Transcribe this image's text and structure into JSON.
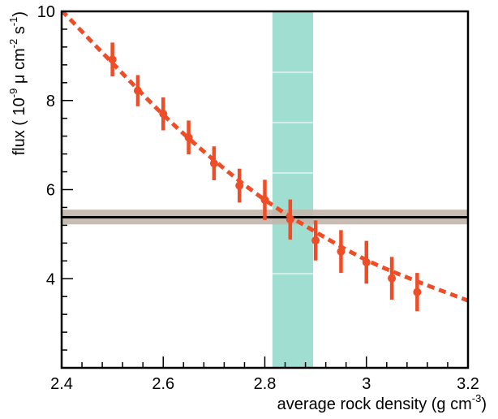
{
  "chart_data": {
    "type": "scatter",
    "xlabel_main": "average rock density (g cm",
    "xlabel_exp": "-3",
    "xlabel_close": ")",
    "ylabel_open": "flux ( 10",
    "ylabel_exp1": "-9",
    "ylabel_mu": " μ cm",
    "ylabel_exp2": "-2",
    "ylabel_s": " s",
    "ylabel_exp3": "-1",
    "ylabel_close": ")",
    "xlim": [
      2.4,
      3.2
    ],
    "ylim": [
      2.0,
      10.0
    ],
    "x_ticks": [
      {
        "value": 2.4,
        "label": "2.4"
      },
      {
        "value": 2.6,
        "label": "2.6"
      },
      {
        "value": 2.8,
        "label": "2.8"
      },
      {
        "value": 3.0,
        "label": "3"
      },
      {
        "value": 3.2,
        "label": "3.2"
      }
    ],
    "y_ticks": [
      {
        "value": 4,
        "label": "4"
      },
      {
        "value": 6,
        "label": "6"
      },
      {
        "value": 8,
        "label": "8"
      },
      {
        "value": 10,
        "label": "10"
      }
    ],
    "series": [
      {
        "points": [
          {
            "x": 2.5,
            "y": 8.92,
            "err": 0.38
          },
          {
            "x": 2.55,
            "y": 8.22,
            "err": 0.35
          },
          {
            "x": 2.6,
            "y": 7.7,
            "err": 0.37
          },
          {
            "x": 2.65,
            "y": 7.17,
            "err": 0.38
          },
          {
            "x": 2.7,
            "y": 6.59,
            "err": 0.38
          },
          {
            "x": 2.75,
            "y": 6.09,
            "err": 0.38
          },
          {
            "x": 2.8,
            "y": 5.77,
            "err": 0.45
          },
          {
            "x": 2.85,
            "y": 5.33,
            "err": 0.45
          },
          {
            "x": 2.9,
            "y": 4.86,
            "err": 0.45
          },
          {
            "x": 2.95,
            "y": 4.61,
            "err": 0.48
          },
          {
            "x": 3.0,
            "y": 4.37,
            "err": 0.48
          },
          {
            "x": 3.05,
            "y": 4.01,
            "err": 0.48
          },
          {
            "x": 3.1,
            "y": 3.7,
            "err": 0.43
          }
        ],
        "color": "#ee4d27"
      },
      {
        "type": "fit-curve",
        "x": [
          2.4,
          2.5,
          2.6,
          2.7,
          2.8,
          2.9,
          3.0,
          3.1,
          3.2
        ],
        "y": [
          10.02,
          8.84,
          7.68,
          6.66,
          5.77,
          5.05,
          4.42,
          3.94,
          3.51
        ],
        "color": "#ee4d27"
      },
      {
        "type": "horizontal-band",
        "y": 5.38,
        "y_low": 5.22,
        "y_high": 5.55,
        "line_color": "#000000",
        "band_color": "#c3b5aa"
      },
      {
        "type": "vertical-band",
        "x_low": 2.815,
        "x_high": 2.895,
        "band_color": "#8ed8c8"
      }
    ],
    "grid": false,
    "legend": "none"
  }
}
